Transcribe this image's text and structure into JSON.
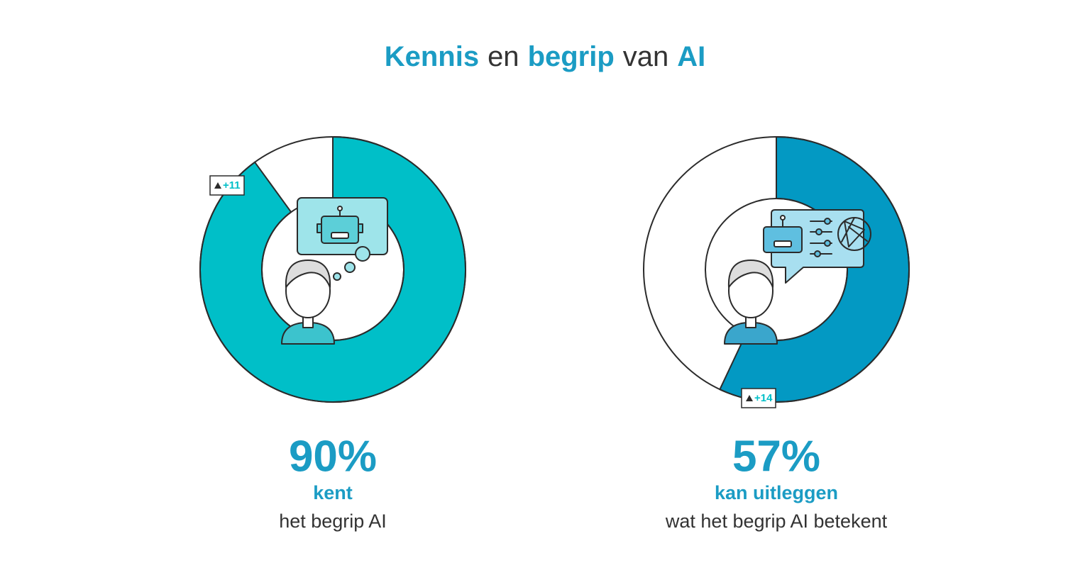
{
  "title": {
    "parts": [
      "Kennis",
      "en",
      "begrip",
      "van",
      "AI"
    ],
    "emphasis": [
      true,
      false,
      true,
      false,
      true
    ]
  },
  "chart_data": [
    {
      "type": "donut",
      "value": 90,
      "value_label": "90%",
      "change": 11,
      "change_label": "+11",
      "color": "#00bfc8",
      "label": "kent",
      "sublabel": "het begrip AI"
    },
    {
      "type": "donut",
      "value": 57,
      "value_label": "57%",
      "change": 14,
      "change_label": "+14",
      "color": "#0399c3",
      "label": "kan uitleggen",
      "sublabel": "wat het begrip AI betekent"
    }
  ]
}
